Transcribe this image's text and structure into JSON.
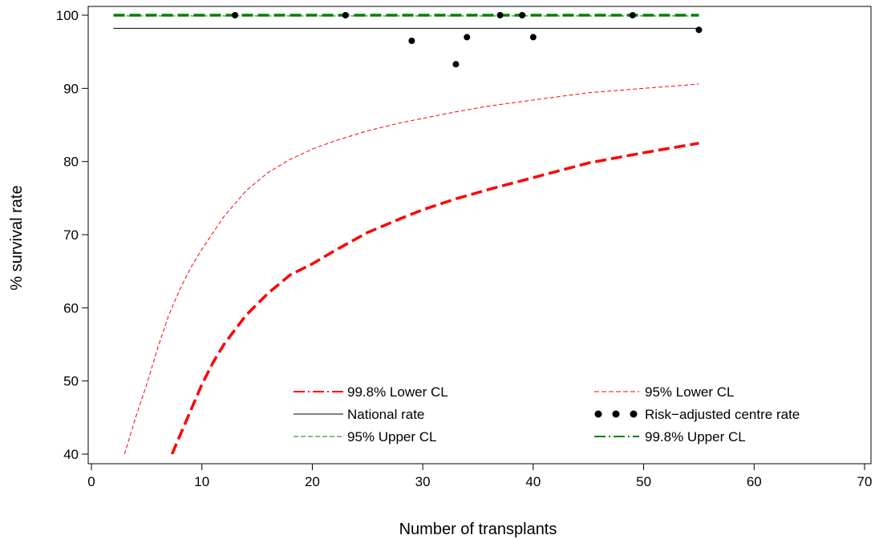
{
  "chart_data": {
    "type": "line",
    "xlabel": "Number of transplants",
    "ylabel": "% survival rate",
    "xlim": [
      0,
      70
    ],
    "ylim": [
      39,
      101.5
    ],
    "xticks": [
      0,
      10,
      20,
      30,
      40,
      50,
      60,
      70
    ],
    "yticks": [
      40,
      50,
      60,
      70,
      80,
      90,
      100
    ],
    "grid": false,
    "legend_position": "bottom-center",
    "series": [
      {
        "name": "95% Lower CL",
        "kind": "line",
        "color": "#ff0000",
        "style": "thin-dashed",
        "x": [
          3,
          4,
          5,
          6,
          7,
          8,
          9,
          10,
          12,
          14,
          16,
          18,
          20,
          22,
          25,
          28,
          30,
          33,
          36,
          40,
          45,
          50,
          55
        ],
        "y": [
          40,
          45,
          49.5,
          54.5,
          59,
          62.5,
          65.5,
          68,
          72.5,
          76,
          78.5,
          80.3,
          81.7,
          82.8,
          84.2,
          85.3,
          85.9,
          86.8,
          87.6,
          88.4,
          89.4,
          90,
          90.6
        ]
      },
      {
        "name": "99.8% Lower CL",
        "kind": "line",
        "color": "#ff0000",
        "style": "thick-dashed",
        "x": [
          7.3,
          8,
          9,
          10,
          11,
          12,
          13,
          14,
          15,
          16,
          18,
          20,
          22,
          25,
          28,
          30,
          33,
          36,
          40,
          45,
          50,
          55
        ],
        "y": [
          40,
          42.5,
          46,
          49.5,
          52.5,
          55,
          57,
          59,
          60.5,
          62,
          64.5,
          66,
          67.8,
          70.3,
          72.2,
          73.4,
          74.9,
          76.2,
          77.8,
          79.8,
          81.2,
          82.5
        ]
      },
      {
        "name": "National rate",
        "kind": "line",
        "color": "#000000",
        "style": "solid",
        "x": [
          2,
          55
        ],
        "y": [
          98.2,
          98.2
        ]
      },
      {
        "name": "95% Upper CL",
        "kind": "line",
        "color": "#008000",
        "style": "thin-dashed",
        "x": [
          2,
          55
        ],
        "y": [
          99.9,
          99.9
        ]
      },
      {
        "name": "99.8% Upper CL",
        "kind": "line",
        "color": "#008000",
        "style": "thick-dashed",
        "x": [
          2,
          55
        ],
        "y": [
          100,
          100
        ]
      },
      {
        "name": "Risk−adjusted centre rate",
        "kind": "scatter",
        "color": "#000000",
        "x": [
          13,
          23,
          29,
          33,
          34,
          37,
          39,
          40,
          49,
          55
        ],
        "y": [
          100,
          100,
          96.5,
          93.3,
          97,
          100,
          100,
          97,
          100,
          98
        ]
      }
    ],
    "legend": [
      {
        "label": "99.8% Lower CL",
        "color": "#ff0000",
        "style": "thick-dashed"
      },
      {
        "label": "95% Lower CL",
        "color": "#ff0000",
        "style": "thin-dashed"
      },
      {
        "label": "National rate",
        "color": "#000000",
        "style": "solid"
      },
      {
        "label": "Risk−adjusted centre rate",
        "color": "#000000",
        "style": "dots"
      },
      {
        "label": "95% Upper CL",
        "color": "#008000",
        "style": "thin-dashed"
      },
      {
        "label": "99.8% Upper CL",
        "color": "#008000",
        "style": "thick-dashed"
      }
    ]
  }
}
